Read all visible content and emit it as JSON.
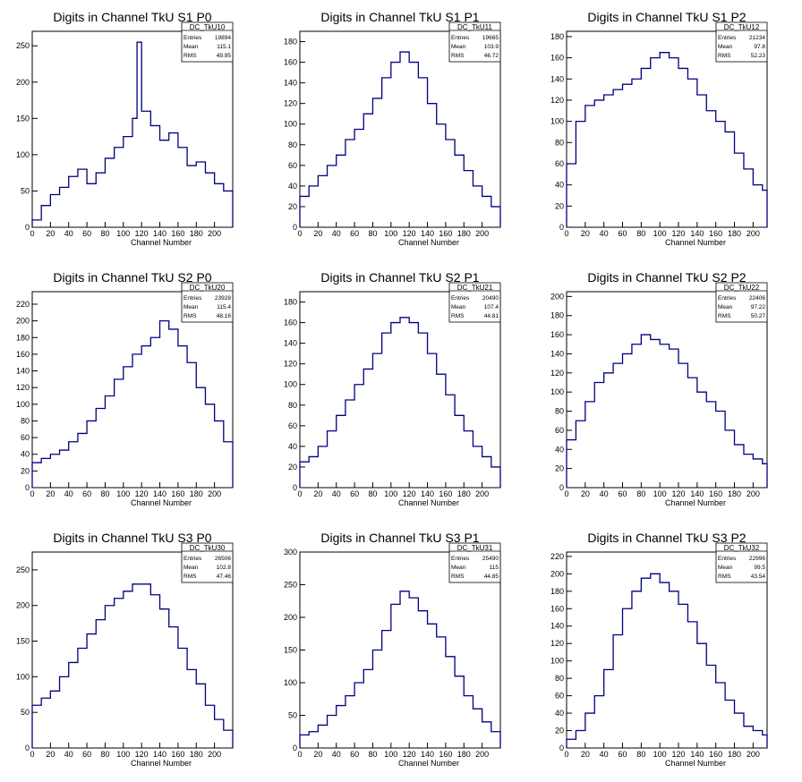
{
  "figure": {
    "xlabel": "Channel Number",
    "stats_labels": {
      "entries": "Entries",
      "mean": "Mean",
      "rms": "RMS"
    },
    "line_color": "#000080"
  },
  "chart_data": [
    {
      "type": "histogram",
      "title": "Digits in Channel TkU S1 P0",
      "stats_name": "DC_TkU10",
      "entries": "19894",
      "mean": "115.1",
      "rms": "49.95",
      "xlabel": "Channel Number",
      "xlim": [
        0,
        220
      ],
      "ylim": [
        0,
        270
      ],
      "xticks": [
        0,
        20,
        40,
        60,
        80,
        100,
        120,
        140,
        160,
        180,
        200
      ],
      "yticks": [
        0,
        50,
        100,
        150,
        200,
        250
      ],
      "x": [
        0,
        10,
        20,
        30,
        40,
        50,
        60,
        70,
        80,
        90,
        100,
        110,
        115,
        120,
        130,
        140,
        150,
        160,
        170,
        180,
        190,
        200,
        210,
        220
      ],
      "values": [
        10,
        30,
        45,
        55,
        70,
        80,
        60,
        75,
        95,
        110,
        125,
        150,
        255,
        160,
        140,
        120,
        130,
        110,
        85,
        90,
        75,
        60,
        50,
        40
      ]
    },
    {
      "type": "histogram",
      "title": "Digits in Channel TkU S1 P1",
      "stats_name": "DC_TkU11",
      "entries": "19665",
      "mean": "103.9",
      "rms": "46.72",
      "xlabel": "Channel Number",
      "xlim": [
        0,
        220
      ],
      "ylim": [
        0,
        190
      ],
      "xticks": [
        0,
        20,
        40,
        60,
        80,
        100,
        120,
        140,
        160,
        180,
        200
      ],
      "yticks": [
        0,
        20,
        40,
        60,
        80,
        100,
        120,
        140,
        160,
        180
      ],
      "x": [
        0,
        10,
        20,
        30,
        40,
        50,
        60,
        70,
        80,
        90,
        100,
        110,
        120,
        130,
        140,
        150,
        160,
        170,
        180,
        190,
        200,
        210,
        220
      ],
      "values": [
        30,
        40,
        50,
        60,
        70,
        85,
        95,
        110,
        125,
        145,
        160,
        170,
        160,
        145,
        120,
        100,
        85,
        70,
        55,
        40,
        30,
        20,
        10
      ]
    },
    {
      "type": "histogram",
      "title": "Digits in Channel TkU S1 P2",
      "stats_name": "DC_TkU12",
      "entries": "21234",
      "mean": "97.8",
      "rms": "52.23",
      "xlabel": "Channel Number",
      "xlim": [
        0,
        215
      ],
      "ylim": [
        0,
        185
      ],
      "xticks": [
        0,
        20,
        40,
        60,
        80,
        100,
        120,
        140,
        160,
        180,
        200
      ],
      "yticks": [
        0,
        20,
        40,
        60,
        80,
        100,
        120,
        140,
        160,
        180
      ],
      "x": [
        0,
        10,
        20,
        30,
        40,
        50,
        60,
        70,
        80,
        90,
        100,
        110,
        120,
        130,
        140,
        150,
        160,
        170,
        180,
        190,
        200,
        210
      ],
      "values": [
        60,
        100,
        115,
        120,
        125,
        130,
        135,
        140,
        150,
        160,
        165,
        160,
        150,
        140,
        125,
        110,
        100,
        90,
        70,
        55,
        40,
        35
      ]
    },
    {
      "type": "histogram",
      "title": "Digits in Channel TkU S2 P0",
      "stats_name": "DC_TkU20",
      "entries": "23928",
      "mean": "115.4",
      "rms": "48.16",
      "xlabel": "Channel Number",
      "xlim": [
        0,
        220
      ],
      "ylim": [
        0,
        235
      ],
      "xticks": [
        0,
        20,
        40,
        60,
        80,
        100,
        120,
        140,
        160,
        180,
        200
      ],
      "yticks": [
        0,
        20,
        40,
        60,
        80,
        100,
        120,
        140,
        160,
        180,
        200,
        220
      ],
      "x": [
        0,
        10,
        20,
        30,
        40,
        50,
        60,
        70,
        80,
        90,
        100,
        110,
        120,
        130,
        140,
        150,
        160,
        170,
        180,
        190,
        200,
        210,
        220
      ],
      "values": [
        30,
        35,
        40,
        45,
        55,
        65,
        80,
        95,
        110,
        130,
        145,
        160,
        170,
        180,
        200,
        190,
        170,
        150,
        120,
        100,
        80,
        55,
        35
      ]
    },
    {
      "type": "histogram",
      "title": "Digits in Channel TkU S2 P1",
      "stats_name": "DC_TkU21",
      "entries": "20490",
      "mean": "107.4",
      "rms": "44.81",
      "xlabel": "Channel Number",
      "xlim": [
        0,
        220
      ],
      "ylim": [
        0,
        190
      ],
      "xticks": [
        0,
        20,
        40,
        60,
        80,
        100,
        120,
        140,
        160,
        180,
        200
      ],
      "yticks": [
        0,
        20,
        40,
        60,
        80,
        100,
        120,
        140,
        160,
        180
      ],
      "x": [
        0,
        10,
        20,
        30,
        40,
        50,
        60,
        70,
        80,
        90,
        100,
        110,
        120,
        130,
        140,
        150,
        160,
        170,
        180,
        190,
        200,
        210,
        220
      ],
      "values": [
        25,
        30,
        40,
        55,
        70,
        85,
        100,
        115,
        130,
        150,
        160,
        165,
        160,
        150,
        130,
        110,
        90,
        70,
        55,
        40,
        30,
        20,
        10
      ]
    },
    {
      "type": "histogram",
      "title": "Digits in Channel TkU S2 P2",
      "stats_name": "DC_TkU22",
      "entries": "22406",
      "mean": "97.22",
      "rms": "50.27",
      "xlabel": "Channel Number",
      "xlim": [
        0,
        215
      ],
      "ylim": [
        0,
        205
      ],
      "xticks": [
        0,
        20,
        40,
        60,
        80,
        100,
        120,
        140,
        160,
        180,
        200
      ],
      "yticks": [
        0,
        20,
        40,
        60,
        80,
        100,
        120,
        140,
        160,
        180,
        200
      ],
      "x": [
        0,
        10,
        20,
        30,
        40,
        50,
        60,
        70,
        80,
        90,
        100,
        110,
        120,
        130,
        140,
        150,
        160,
        170,
        180,
        190,
        200,
        210
      ],
      "values": [
        50,
        70,
        90,
        110,
        120,
        130,
        140,
        150,
        160,
        155,
        150,
        145,
        130,
        115,
        100,
        90,
        80,
        60,
        45,
        35,
        30,
        25
      ]
    },
    {
      "type": "histogram",
      "title": "Digits in Channel TkU S3 P0",
      "stats_name": "DC_TkU30",
      "entries": "26506",
      "mean": "102.8",
      "rms": "47.46",
      "xlabel": "Channel Number",
      "xlim": [
        0,
        220
      ],
      "ylim": [
        0,
        275
      ],
      "xticks": [
        0,
        20,
        40,
        60,
        80,
        100,
        120,
        140,
        160,
        180,
        200
      ],
      "yticks": [
        0,
        50,
        100,
        150,
        200,
        250
      ],
      "x": [
        0,
        10,
        20,
        30,
        40,
        50,
        60,
        70,
        80,
        90,
        100,
        110,
        120,
        130,
        140,
        150,
        160,
        170,
        180,
        190,
        200,
        210,
        220
      ],
      "values": [
        60,
        70,
        80,
        100,
        120,
        140,
        160,
        180,
        200,
        210,
        220,
        230,
        230,
        215,
        195,
        170,
        140,
        110,
        90,
        60,
        40,
        25,
        15
      ]
    },
    {
      "type": "histogram",
      "title": "Digits in Channel TkU S3 P1",
      "stats_name": "DC_TkU31",
      "entries": "25490",
      "mean": "115",
      "rms": "44.85",
      "xlabel": "Channel Number",
      "xlim": [
        0,
        220
      ],
      "ylim": [
        0,
        300
      ],
      "xticks": [
        0,
        20,
        40,
        60,
        80,
        100,
        120,
        140,
        160,
        180,
        200
      ],
      "yticks": [
        0,
        50,
        100,
        150,
        200,
        250,
        300
      ],
      "x": [
        0,
        10,
        20,
        30,
        40,
        50,
        60,
        70,
        80,
        90,
        100,
        110,
        120,
        130,
        140,
        150,
        160,
        170,
        180,
        190,
        200,
        210,
        220
      ],
      "values": [
        20,
        25,
        35,
        50,
        65,
        80,
        100,
        120,
        150,
        180,
        220,
        240,
        230,
        210,
        190,
        170,
        140,
        110,
        80,
        60,
        40,
        25,
        15
      ]
    },
    {
      "type": "histogram",
      "title": "Digits in Channel TkU S3 P2",
      "stats_name": "DC_TkU32",
      "entries": "22996",
      "mean": "99.5",
      "rms": "43.54",
      "xlabel": "Channel Number",
      "xlim": [
        0,
        215
      ],
      "ylim": [
        0,
        225
      ],
      "xticks": [
        0,
        20,
        40,
        60,
        80,
        100,
        120,
        140,
        160,
        180,
        200
      ],
      "yticks": [
        0,
        20,
        40,
        60,
        80,
        100,
        120,
        140,
        160,
        180,
        200,
        220
      ],
      "x": [
        0,
        10,
        20,
        30,
        40,
        50,
        60,
        70,
        80,
        90,
        100,
        110,
        120,
        130,
        140,
        150,
        160,
        170,
        180,
        190,
        200,
        210
      ],
      "values": [
        10,
        20,
        40,
        60,
        90,
        130,
        160,
        180,
        195,
        200,
        190,
        180,
        165,
        145,
        120,
        95,
        75,
        55,
        40,
        25,
        20,
        15
      ]
    }
  ]
}
